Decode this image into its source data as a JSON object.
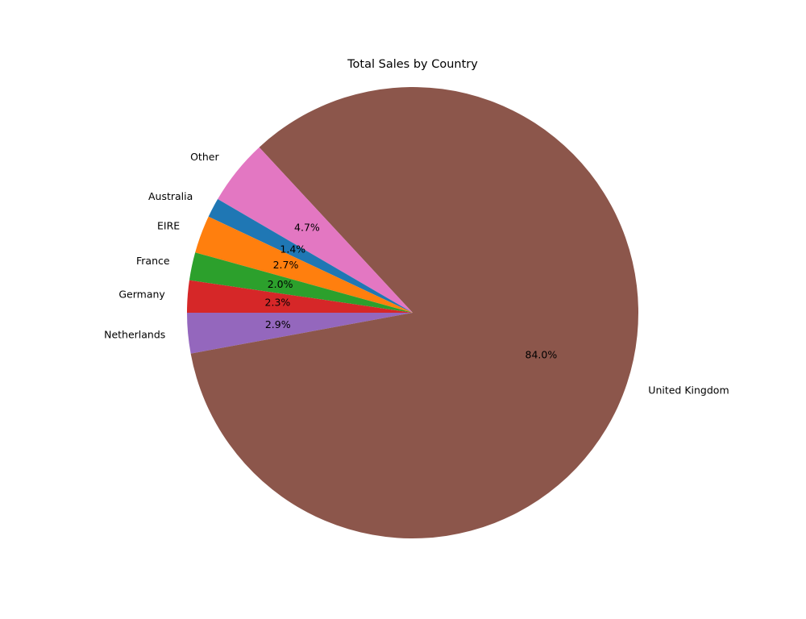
{
  "chart_data": {
    "type": "pie",
    "title": "Total Sales by Country",
    "start_angle_deg": 180,
    "direction": "counterclockwise",
    "slices": [
      {
        "label": "Netherlands",
        "value": 2.9,
        "pct_label": "2.9%",
        "color": "#9467bd"
      },
      {
        "label": "United Kingdom",
        "value": 84.0,
        "pct_label": "84.0%",
        "color": "#8c564b"
      },
      {
        "label": "Other",
        "value": 4.7,
        "pct_label": "4.7%",
        "color": "#e377c2"
      },
      {
        "label": "Australia",
        "value": 1.4,
        "pct_label": "1.4%",
        "color": "#1f77b4"
      },
      {
        "label": "EIRE",
        "value": 2.7,
        "pct_label": "2.7%",
        "color": "#ff7f0e"
      },
      {
        "label": "France",
        "value": 2.0,
        "pct_label": "2.0%",
        "color": "#2ca02c"
      },
      {
        "label": "Germany",
        "value": 2.3,
        "pct_label": "2.3%",
        "color": "#d62728"
      }
    ]
  }
}
